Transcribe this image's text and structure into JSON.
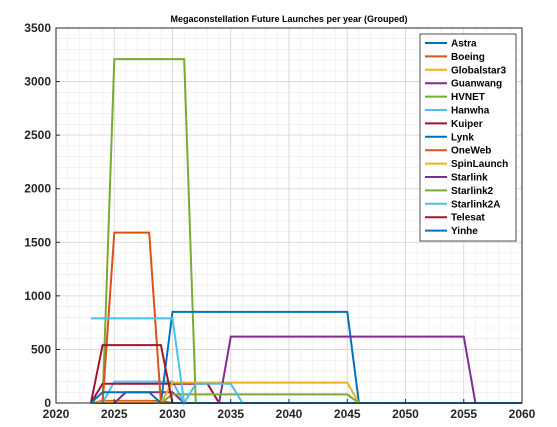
{
  "chart_data": {
    "type": "line",
    "title": "Megaconstellation Future Launches per year (Grouped)",
    "xlabel": "",
    "ylabel": "",
    "xlim": [
      2020,
      2060
    ],
    "ylim": [
      0,
      3500
    ],
    "xticks": [
      2020,
      2025,
      2030,
      2035,
      2040,
      2045,
      2050,
      2055,
      2060
    ],
    "yticks": [
      0,
      500,
      1000,
      1500,
      2000,
      2500,
      3000,
      3500
    ],
    "grid": true,
    "legend_position": "top-right",
    "series": [
      {
        "name": "Astra",
        "color": "#0072BD",
        "x": [
          2023,
          2024,
          2060
        ],
        "y": [
          0,
          0,
          0
        ]
      },
      {
        "name": "Boeing",
        "color": "#D95319",
        "x": [
          2023,
          2024,
          2025,
          2029,
          2030
        ],
        "y": [
          0,
          20,
          20,
          20,
          0
        ]
      },
      {
        "name": "Globalstar3",
        "color": "#EDB120",
        "x": [
          2023,
          2024,
          2028,
          2029
        ],
        "y": [
          0,
          10,
          10,
          0
        ]
      },
      {
        "name": "Guanwang",
        "color": "#7E2F8E",
        "x": [
          2025,
          2026,
          2030,
          2031
        ],
        "y": [
          0,
          100,
          100,
          0
        ]
      },
      {
        "name": "HVNET",
        "color": "#77AC30",
        "x": [
          2024,
          2025,
          2031,
          2032
        ],
        "y": [
          0,
          3210,
          3210,
          0
        ]
      },
      {
        "name": "Hanwha",
        "color": "#4DBEEE",
        "x": [
          2024,
          2025,
          2030,
          2031
        ],
        "y": [
          0,
          200,
          200,
          0
        ]
      },
      {
        "name": "Kuiper",
        "color": "#A2142F",
        "x": [
          2023,
          2024,
          2033,
          2034
        ],
        "y": [
          0,
          180,
          180,
          0
        ]
      },
      {
        "name": "Lynk",
        "color": "#0072BD",
        "x": [
          2029,
          2030,
          2045,
          2046
        ],
        "y": [
          0,
          850,
          850,
          0
        ]
      },
      {
        "name": "OneWeb",
        "color": "#D95319",
        "x": [
          2024,
          2025,
          2028,
          2029
        ],
        "y": [
          0,
          1590,
          1590,
          0
        ]
      },
      {
        "name": "SpinLaunch",
        "color": "#EDB120",
        "x": [
          2029,
          2030,
          2045,
          2046
        ],
        "y": [
          0,
          190,
          190,
          0
        ]
      },
      {
        "name": "Starlink",
        "color": "#7E2F8E",
        "x": [
          2034,
          2035,
          2055,
          2056
        ],
        "y": [
          0,
          620,
          620,
          0
        ]
      },
      {
        "name": "Starlink2",
        "color": "#77AC30",
        "x": [
          2029,
          2030,
          2045,
          2046
        ],
        "y": [
          0,
          80,
          80,
          0
        ]
      },
      {
        "name": "Starlink2A",
        "color": "#4DBEEE",
        "x": [
          2023,
          2030,
          2031,
          2032,
          2035,
          2036
        ],
        "y": [
          790,
          790,
          0,
          180,
          180,
          0
        ]
      },
      {
        "name": "Telesat",
        "color": "#A2142F",
        "x": [
          2023,
          2024,
          2029,
          2030
        ],
        "y": [
          0,
          540,
          540,
          0
        ]
      },
      {
        "name": "Yinhe",
        "color": "#0072BD",
        "x": [
          2023,
          2024,
          2028,
          2029
        ],
        "y": [
          0,
          100,
          100,
          0
        ]
      }
    ]
  }
}
